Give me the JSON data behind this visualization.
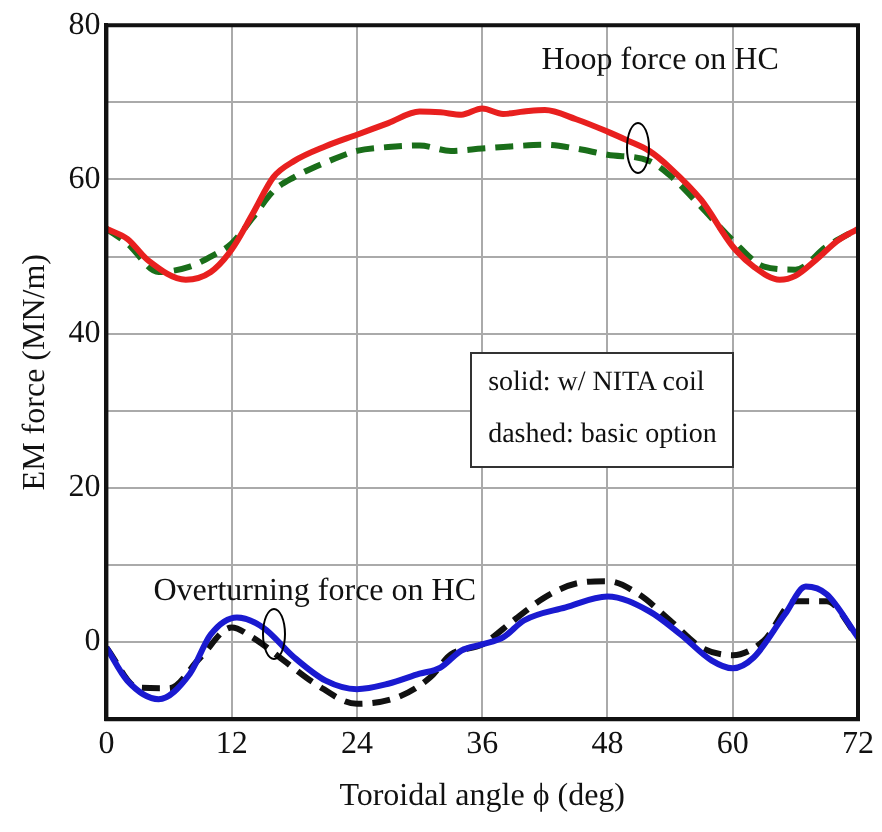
{
  "chart_data": {
    "type": "line",
    "xlabel": "Toroidal angle ϕ (deg)",
    "ylabel": "EM force (MN/m)",
    "xlim": [
      0,
      72
    ],
    "xticks": [
      0,
      12,
      24,
      36,
      48,
      60,
      72
    ],
    "ylim": [
      -10,
      80
    ],
    "yticks": [
      {
        "value": -10,
        "label": null
      },
      0,
      {
        "value": 10,
        "label": null
      },
      20,
      {
        "value": 30,
        "label": null
      },
      40,
      {
        "value": 50,
        "label": null
      },
      60,
      {
        "value": 70,
        "label": null
      },
      80
    ],
    "grid": true,
    "legend": false,
    "marker": "none",
    "series": [
      {
        "color": "#e8201f",
        "line_style": "solid",
        "x": [
          0,
          2,
          4,
          7.6,
          10,
          12,
          14,
          16,
          18,
          21,
          24,
          27,
          30,
          32,
          34,
          36,
          38,
          40,
          42,
          45,
          48,
          50,
          52,
          54,
          57,
          60,
          62,
          64.5,
          66,
          68,
          70,
          72
        ],
        "values": [
          53.6,
          52.3,
          49.5,
          47,
          48,
          50.9,
          55.5,
          60.3,
          62.4,
          64.3,
          65.8,
          67.3,
          68.8,
          68.7,
          68.4,
          69.2,
          68.5,
          68.8,
          69,
          67.8,
          66.2,
          65,
          63.7,
          61.5,
          57.3,
          51.3,
          48.7,
          47,
          47.5,
          49.6,
          52,
          53.6
        ]
      },
      {
        "color": "#1a6e1a",
        "line_style": "dashed",
        "x": [
          0,
          2,
          5,
          8,
          10,
          12,
          14,
          16,
          18,
          21,
          24,
          27,
          30,
          33,
          36,
          39,
          42,
          45,
          48,
          52,
          54,
          57,
          60,
          63,
          66,
          69,
          72
        ],
        "values": [
          53.6,
          51.7,
          48,
          48.7,
          50,
          51.7,
          55,
          58.5,
          60.3,
          62.2,
          63.7,
          64.2,
          64.4,
          63.7,
          64,
          64.3,
          64.5,
          64,
          63.2,
          62.4,
          60.5,
          56.4,
          52.1,
          48.7,
          48.3,
          51.3,
          53.6
        ]
      },
      {
        "color": "#1a1ad0",
        "line_style": "solid",
        "x": [
          0,
          2,
          5,
          8,
          10,
          12.5,
          15,
          18,
          21,
          24,
          27,
          30,
          32,
          34,
          36,
          38,
          40,
          44,
          48,
          52,
          55,
          58,
          60,
          62,
          65,
          67,
          69,
          72
        ],
        "values": [
          -0.7,
          -5,
          -7.4,
          -4.1,
          1,
          3.2,
          1.9,
          -2,
          -5,
          -6.1,
          -5.4,
          -4.1,
          -3.3,
          -1.1,
          -0.3,
          0.6,
          2.8,
          4.5,
          5.9,
          4,
          1,
          -2.4,
          -3.4,
          -2,
          3.6,
          7.2,
          6.2,
          0.6
        ]
      },
      {
        "color": "#111111",
        "line_style": "dashed",
        "x": [
          0,
          3,
          6,
          9,
          12,
          14,
          17,
          20,
          24,
          28,
          31,
          33,
          36,
          39,
          42,
          45,
          48,
          51,
          54,
          57,
          60,
          63,
          66,
          69,
          72
        ],
        "values": [
          -0.7,
          -5.9,
          -6,
          -2,
          1.9,
          0.6,
          -2.4,
          -5.4,
          -8,
          -7.1,
          -4.6,
          -1.6,
          -0.3,
          2.8,
          5.8,
          7.6,
          7.9,
          6.2,
          2.8,
          -0.7,
          -1.7,
          0.2,
          5.3,
          5.3,
          0.6
        ]
      }
    ],
    "annotations": [
      {
        "text": "Hoop force on HC",
        "x": 51,
        "y": 64
      },
      {
        "text": "Overturning force on HC",
        "x": 16,
        "y": 1
      },
      "solid: w/ NITA coil",
      "dashed: basic option"
    ]
  }
}
